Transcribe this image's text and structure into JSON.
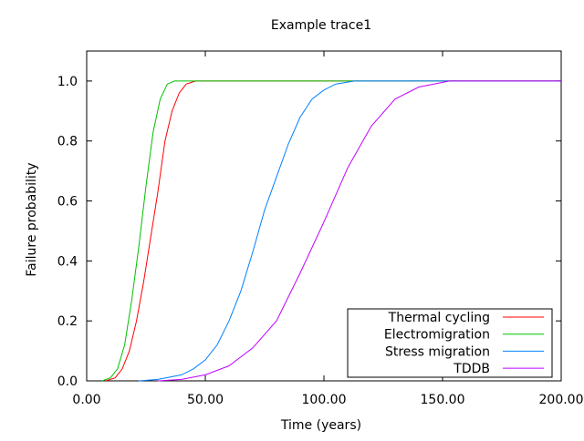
{
  "chart_data": {
    "type": "line",
    "title": "Example trace1",
    "xlabel": "Time (years)",
    "ylabel": "Failure probability",
    "xlim": [
      0,
      200
    ],
    "ylim": [
      0,
      1.1
    ],
    "xticks": [
      0,
      50,
      100,
      150,
      200
    ],
    "xtick_labels": [
      "0.00",
      "50.00",
      "100.00",
      "150.00",
      "200.00"
    ],
    "yticks": [
      0,
      0.2,
      0.4,
      0.6,
      0.8,
      1.0
    ],
    "ytick_labels": [
      "0.0",
      "0.2",
      "0.4",
      "0.6",
      "0.8",
      "1.0"
    ],
    "grid": false,
    "legend_position": "bottom-right",
    "series": [
      {
        "name": "Thermal cycling",
        "color": "#ff0000",
        "x": [
          8,
          12,
          15,
          18,
          21,
          24,
          27,
          30,
          33,
          36,
          39,
          42,
          46,
          200
        ],
        "y": [
          0,
          0.01,
          0.04,
          0.1,
          0.2,
          0.33,
          0.48,
          0.63,
          0.8,
          0.9,
          0.96,
          0.99,
          1,
          1
        ]
      },
      {
        "name": "Electromigration",
        "color": "#00c000",
        "x": [
          6.5,
          10,
          13,
          16,
          19,
          22,
          25,
          28,
          31,
          34,
          37,
          200
        ],
        "y": [
          0,
          0.01,
          0.04,
          0.12,
          0.27,
          0.45,
          0.65,
          0.83,
          0.94,
          0.99,
          1,
          1
        ]
      },
      {
        "name": "Stress migration",
        "color": "#0080ff",
        "x": [
          22,
          30,
          40,
          45,
          50,
          55,
          60,
          65,
          70,
          75,
          80,
          85,
          90,
          95,
          100,
          105,
          113,
          200
        ],
        "y": [
          0,
          0.005,
          0.02,
          0.04,
          0.07,
          0.12,
          0.2,
          0.3,
          0.43,
          0.57,
          0.68,
          0.79,
          0.88,
          0.94,
          0.97,
          0.99,
          1,
          1
        ]
      },
      {
        "name": "TDDB",
        "color": "#c000ff",
        "x": [
          30,
          40,
          50,
          60,
          70,
          80,
          90,
          100,
          110,
          120,
          130,
          140,
          153,
          200
        ],
        "y": [
          0,
          0.005,
          0.02,
          0.05,
          0.11,
          0.2,
          0.36,
          0.53,
          0.71,
          0.85,
          0.94,
          0.98,
          1,
          1
        ]
      }
    ]
  }
}
